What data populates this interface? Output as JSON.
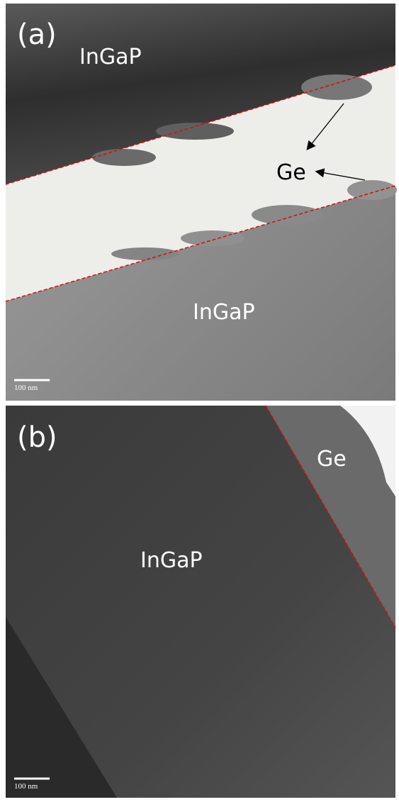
{
  "panels": [
    {
      "label": "(a)",
      "labels": [
        "InGaP",
        "Ge",
        "InGaP"
      ],
      "scale_bar": "100 nm"
    },
    {
      "label": "(b)",
      "labels": [
        "Ge",
        "InGaP"
      ],
      "scale_bar": "100 nm"
    }
  ]
}
